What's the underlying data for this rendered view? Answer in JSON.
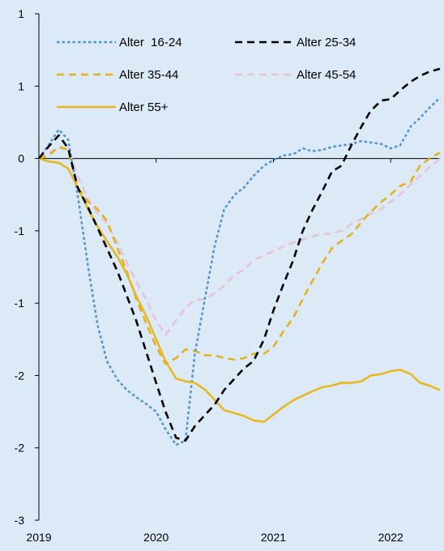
{
  "chart_data": {
    "type": "line",
    "title": "",
    "xlabel": "",
    "ylabel": "",
    "x_ticks": [
      {
        "value": 2019,
        "label": "2019"
      },
      {
        "value": 2020,
        "label": "2020"
      },
      {
        "value": 2021,
        "label": "2021"
      },
      {
        "value": 2022,
        "label": "2022"
      }
    ],
    "xlim": [
      2019,
      2022.42
    ],
    "y_ticks": [
      {
        "value": 1.0,
        "label": "1"
      },
      {
        "value": 0.5,
        "label": "1"
      },
      {
        "value": 0.0,
        "label": "0"
      },
      {
        "value": -0.5,
        "label": "-1"
      },
      {
        "value": -1.0,
        "label": "-1"
      },
      {
        "value": -1.5,
        "label": "-2"
      },
      {
        "value": -2.0,
        "label": "-2"
      },
      {
        "value": -2.5,
        "label": "-3"
      }
    ],
    "ylim": [
      -2.5,
      1.0
    ],
    "grid": false,
    "legend_position": "top-left",
    "series": [
      {
        "name": "Alter  16-24",
        "color": "#4f96cf",
        "dash": "dotted",
        "points": [
          [
            2019.0,
            0.0
          ],
          [
            2019.08,
            0.09
          ],
          [
            2019.17,
            0.2
          ],
          [
            2019.25,
            0.13
          ],
          [
            2019.33,
            -0.25
          ],
          [
            2019.42,
            -0.75
          ],
          [
            2019.5,
            -1.15
          ],
          [
            2019.58,
            -1.4
          ],
          [
            2019.67,
            -1.53
          ],
          [
            2019.75,
            -1.6
          ],
          [
            2019.83,
            -1.65
          ],
          [
            2019.92,
            -1.7
          ],
          [
            2020.0,
            -1.75
          ],
          [
            2020.08,
            -1.87
          ],
          [
            2020.17,
            -1.98
          ],
          [
            2020.25,
            -1.95
          ],
          [
            2020.33,
            -1.35
          ],
          [
            2020.42,
            -0.95
          ],
          [
            2020.5,
            -0.6
          ],
          [
            2020.58,
            -0.35
          ],
          [
            2020.67,
            -0.25
          ],
          [
            2020.75,
            -0.2
          ],
          [
            2020.83,
            -0.12
          ],
          [
            2020.92,
            -0.05
          ],
          [
            2021.0,
            -0.01
          ],
          [
            2021.08,
            0.02
          ],
          [
            2021.17,
            0.03
          ],
          [
            2021.25,
            0.07
          ],
          [
            2021.33,
            0.05
          ],
          [
            2021.42,
            0.06
          ],
          [
            2021.5,
            0.08
          ],
          [
            2021.58,
            0.09
          ],
          [
            2021.67,
            0.1
          ],
          [
            2021.75,
            0.12
          ],
          [
            2021.83,
            0.11
          ],
          [
            2021.92,
            0.1
          ],
          [
            2022.0,
            0.07
          ],
          [
            2022.08,
            0.09
          ],
          [
            2022.17,
            0.22
          ],
          [
            2022.25,
            0.28
          ],
          [
            2022.33,
            0.35
          ],
          [
            2022.42,
            0.42
          ]
        ]
      },
      {
        "name": "Alter 25-34",
        "color": "#000000",
        "dash": "dashed",
        "points": [
          [
            2019.0,
            0.0
          ],
          [
            2019.08,
            0.08
          ],
          [
            2019.17,
            0.16
          ],
          [
            2019.25,
            0.07
          ],
          [
            2019.33,
            -0.2
          ],
          [
            2019.42,
            -0.34
          ],
          [
            2019.5,
            -0.48
          ],
          [
            2019.58,
            -0.62
          ],
          [
            2019.67,
            -0.78
          ],
          [
            2019.75,
            -0.95
          ],
          [
            2019.83,
            -1.12
          ],
          [
            2019.92,
            -1.35
          ],
          [
            2020.0,
            -1.55
          ],
          [
            2020.08,
            -1.75
          ],
          [
            2020.17,
            -1.93
          ],
          [
            2020.25,
            -1.95
          ],
          [
            2020.33,
            -1.85
          ],
          [
            2020.42,
            -1.77
          ],
          [
            2020.5,
            -1.7
          ],
          [
            2020.58,
            -1.6
          ],
          [
            2020.67,
            -1.52
          ],
          [
            2020.75,
            -1.45
          ],
          [
            2020.83,
            -1.4
          ],
          [
            2020.92,
            -1.25
          ],
          [
            2021.0,
            -1.05
          ],
          [
            2021.08,
            -0.88
          ],
          [
            2021.17,
            -0.7
          ],
          [
            2021.25,
            -0.5
          ],
          [
            2021.33,
            -0.36
          ],
          [
            2021.42,
            -0.22
          ],
          [
            2021.5,
            -0.09
          ],
          [
            2021.58,
            -0.05
          ],
          [
            2021.67,
            0.1
          ],
          [
            2021.75,
            0.22
          ],
          [
            2021.83,
            0.33
          ],
          [
            2021.92,
            0.4
          ],
          [
            2022.0,
            0.41
          ],
          [
            2022.08,
            0.47
          ],
          [
            2022.17,
            0.53
          ],
          [
            2022.25,
            0.57
          ],
          [
            2022.33,
            0.6
          ],
          [
            2022.42,
            0.62
          ]
        ]
      },
      {
        "name": "Alter 35-44",
        "color": "#e0b223",
        "dash": "dashed",
        "points": [
          [
            2019.0,
            0.0
          ],
          [
            2019.08,
            0.02
          ],
          [
            2019.17,
            0.08
          ],
          [
            2019.25,
            0.06
          ],
          [
            2019.33,
            -0.2
          ],
          [
            2019.42,
            -0.3
          ],
          [
            2019.5,
            -0.35
          ],
          [
            2019.58,
            -0.43
          ],
          [
            2019.67,
            -0.62
          ],
          [
            2019.75,
            -0.78
          ],
          [
            2019.83,
            -0.97
          ],
          [
            2019.92,
            -1.15
          ],
          [
            2020.0,
            -1.3
          ],
          [
            2020.08,
            -1.42
          ],
          [
            2020.17,
            -1.38
          ],
          [
            2020.25,
            -1.32
          ],
          [
            2020.33,
            -1.33
          ],
          [
            2020.42,
            -1.36
          ],
          [
            2020.5,
            -1.36
          ],
          [
            2020.58,
            -1.38
          ],
          [
            2020.67,
            -1.39
          ],
          [
            2020.75,
            -1.38
          ],
          [
            2020.83,
            -1.35
          ],
          [
            2020.92,
            -1.35
          ],
          [
            2021.0,
            -1.3
          ],
          [
            2021.08,
            -1.2
          ],
          [
            2021.17,
            -1.1
          ],
          [
            2021.25,
            -0.97
          ],
          [
            2021.33,
            -0.85
          ],
          [
            2021.42,
            -0.72
          ],
          [
            2021.5,
            -0.62
          ],
          [
            2021.58,
            -0.57
          ],
          [
            2021.67,
            -0.52
          ],
          [
            2021.75,
            -0.44
          ],
          [
            2021.83,
            -0.37
          ],
          [
            2021.92,
            -0.3
          ],
          [
            2022.0,
            -0.25
          ],
          [
            2022.08,
            -0.19
          ],
          [
            2022.17,
            -0.16
          ],
          [
            2022.25,
            -0.05
          ],
          [
            2022.33,
            0.0
          ],
          [
            2022.42,
            0.04
          ]
        ]
      },
      {
        "name": "Alter 45-54",
        "color": "#e6c3d7",
        "dash": "dashed",
        "points": [
          [
            2019.0,
            0.0
          ],
          [
            2019.08,
            0.04
          ],
          [
            2019.17,
            0.07
          ],
          [
            2019.25,
            0.07
          ],
          [
            2019.33,
            -0.12
          ],
          [
            2019.42,
            -0.28
          ],
          [
            2019.5,
            -0.38
          ],
          [
            2019.58,
            -0.45
          ],
          [
            2019.67,
            -0.58
          ],
          [
            2019.75,
            -0.72
          ],
          [
            2019.83,
            -0.85
          ],
          [
            2019.92,
            -0.98
          ],
          [
            2020.0,
            -1.12
          ],
          [
            2020.08,
            -1.22
          ],
          [
            2020.17,
            -1.12
          ],
          [
            2020.25,
            -1.03
          ],
          [
            2020.33,
            -0.98
          ],
          [
            2020.42,
            -0.97
          ],
          [
            2020.5,
            -0.93
          ],
          [
            2020.58,
            -0.88
          ],
          [
            2020.67,
            -0.8
          ],
          [
            2020.75,
            -0.77
          ],
          [
            2020.83,
            -0.7
          ],
          [
            2020.92,
            -0.67
          ],
          [
            2021.0,
            -0.64
          ],
          [
            2021.08,
            -0.61
          ],
          [
            2021.17,
            -0.58
          ],
          [
            2021.25,
            -0.56
          ],
          [
            2021.33,
            -0.54
          ],
          [
            2021.42,
            -0.52
          ],
          [
            2021.5,
            -0.52
          ],
          [
            2021.58,
            -0.5
          ],
          [
            2021.67,
            -0.45
          ],
          [
            2021.75,
            -0.42
          ],
          [
            2021.83,
            -0.38
          ],
          [
            2021.92,
            -0.35
          ],
          [
            2022.0,
            -0.3
          ],
          [
            2022.08,
            -0.25
          ],
          [
            2022.17,
            -0.18
          ],
          [
            2022.25,
            -0.12
          ],
          [
            2022.33,
            -0.06
          ],
          [
            2022.42,
            0.0
          ]
        ]
      },
      {
        "name": "Alter 55+",
        "color": "#e6b822",
        "dash": "solid",
        "points": [
          [
            2019.0,
            0.0
          ],
          [
            2019.08,
            -0.02
          ],
          [
            2019.17,
            -0.03
          ],
          [
            2019.25,
            -0.07
          ],
          [
            2019.33,
            -0.2
          ],
          [
            2019.42,
            -0.35
          ],
          [
            2019.5,
            -0.47
          ],
          [
            2019.58,
            -0.57
          ],
          [
            2019.67,
            -0.68
          ],
          [
            2019.75,
            -0.8
          ],
          [
            2019.83,
            -0.95
          ],
          [
            2019.92,
            -1.1
          ],
          [
            2020.0,
            -1.25
          ],
          [
            2020.08,
            -1.4
          ],
          [
            2020.17,
            -1.52
          ],
          [
            2020.25,
            -1.54
          ],
          [
            2020.33,
            -1.55
          ],
          [
            2020.42,
            -1.6
          ],
          [
            2020.5,
            -1.67
          ],
          [
            2020.58,
            -1.74
          ],
          [
            2020.67,
            -1.76
          ],
          [
            2020.75,
            -1.78
          ],
          [
            2020.83,
            -1.81
          ],
          [
            2020.92,
            -1.82
          ],
          [
            2021.0,
            -1.77
          ],
          [
            2021.08,
            -1.72
          ],
          [
            2021.17,
            -1.67
          ],
          [
            2021.25,
            -1.64
          ],
          [
            2021.33,
            -1.61
          ],
          [
            2021.42,
            -1.58
          ],
          [
            2021.5,
            -1.57
          ],
          [
            2021.58,
            -1.55
          ],
          [
            2021.67,
            -1.55
          ],
          [
            2021.75,
            -1.54
          ],
          [
            2021.83,
            -1.5
          ],
          [
            2021.92,
            -1.49
          ],
          [
            2022.0,
            -1.47
          ],
          [
            2022.08,
            -1.46
          ],
          [
            2022.17,
            -1.49
          ],
          [
            2022.25,
            -1.55
          ],
          [
            2022.33,
            -1.57
          ],
          [
            2022.42,
            -1.6
          ]
        ]
      }
    ]
  }
}
